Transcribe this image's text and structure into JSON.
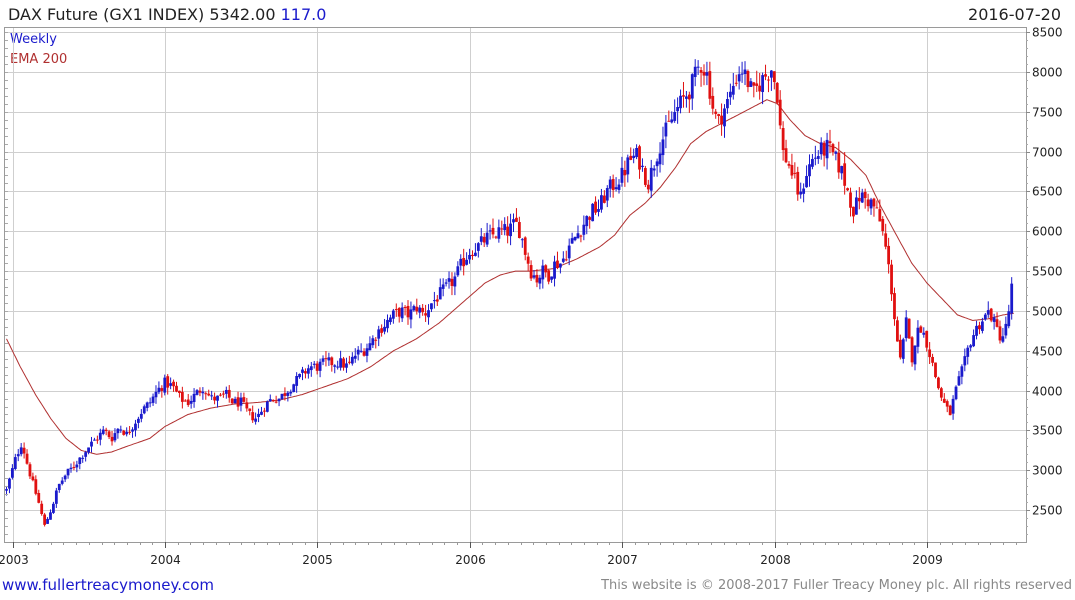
{
  "header": {
    "title_prefix": "DAX Future  (GX1 INDEX) 5342.00",
    "title_change": "117.0",
    "date": "2016-07-20"
  },
  "legend": {
    "weekly": "Weekly",
    "ema": "EMA 200"
  },
  "footer": {
    "url": "www.fullertreacymoney.com",
    "copyright": "This website is © 2008-2017 Fuller Treacy Money plc. All rights reserved"
  },
  "chart_data": {
    "type": "candlestick",
    "interval": "weekly",
    "title": "DAX Future  (GX1 INDEX)",
    "last": 5342.0,
    "change": 117.0,
    "ylim": [
      2100,
      8550
    ],
    "y_ticks": [
      2500,
      3000,
      3500,
      4000,
      4500,
      5000,
      5500,
      6000,
      6500,
      7000,
      7500,
      8000,
      8500
    ],
    "y_tick_labels": [
      "2500",
      "3000",
      "3500",
      "4000",
      "4500",
      "5000",
      "5500",
      "6000",
      "6500",
      "7000",
      "7500",
      "8000",
      "8500"
    ],
    "x_range": [
      2002.95,
      2009.65
    ],
    "x_ticks": [
      2003,
      2004,
      2005,
      2006,
      2007,
      2008,
      2009
    ],
    "x_tick_labels": [
      "2003",
      "2004",
      "2005",
      "2006",
      "2007",
      "2008",
      "2009"
    ],
    "up_color": "#1a1acc",
    "down_color": "#e01010",
    "ema_color": "#b03030",
    "grid": true,
    "price_path": [
      [
        2002.96,
        2750
      ],
      [
        2003.02,
        3150
      ],
      [
        2003.06,
        3350
      ],
      [
        2003.1,
        3050
      ],
      [
        2003.13,
        2850
      ],
      [
        2003.17,
        2600
      ],
      [
        2003.21,
        2300
      ],
      [
        2003.26,
        2550
      ],
      [
        2003.3,
        2800
      ],
      [
        2003.35,
        2950
      ],
      [
        2003.4,
        3050
      ],
      [
        2003.46,
        3200
      ],
      [
        2003.5,
        3300
      ],
      [
        2003.55,
        3400
      ],
      [
        2003.6,
        3500
      ],
      [
        2003.65,
        3400
      ],
      [
        2003.7,
        3550
      ],
      [
        2003.75,
        3450
      ],
      [
        2003.8,
        3600
      ],
      [
        2003.85,
        3750
      ],
      [
        2003.9,
        3850
      ],
      [
        2003.95,
        4000
      ],
      [
        2004.0,
        4100
      ],
      [
        2004.05,
        4050
      ],
      [
        2004.1,
        3900
      ],
      [
        2004.15,
        3850
      ],
      [
        2004.2,
        3950
      ],
      [
        2004.25,
        4050
      ],
      [
        2004.3,
        3900
      ],
      [
        2004.36,
        3900
      ],
      [
        2004.4,
        3950
      ],
      [
        2004.45,
        3850
      ],
      [
        2004.5,
        3850
      ],
      [
        2004.55,
        3700
      ],
      [
        2004.6,
        3650
      ],
      [
        2004.65,
        3800
      ],
      [
        2004.7,
        3900
      ],
      [
        2004.75,
        3900
      ],
      [
        2004.8,
        4000
      ],
      [
        2004.85,
        4100
      ],
      [
        2004.9,
        4200
      ],
      [
        2004.95,
        4300
      ],
      [
        2005.0,
        4300
      ],
      [
        2005.05,
        4350
      ],
      [
        2005.1,
        4350
      ],
      [
        2005.15,
        4350
      ],
      [
        2005.2,
        4300
      ],
      [
        2005.25,
        4450
      ],
      [
        2005.3,
        4500
      ],
      [
        2005.35,
        4600
      ],
      [
        2005.4,
        4750
      ],
      [
        2005.45,
        4850
      ],
      [
        2005.5,
        4950
      ],
      [
        2005.55,
        5000
      ],
      [
        2005.6,
        4950
      ],
      [
        2005.65,
        5050
      ],
      [
        2005.7,
        4950
      ],
      [
        2005.75,
        5100
      ],
      [
        2005.8,
        5200
      ],
      [
        2005.85,
        5300
      ],
      [
        2005.9,
        5400
      ],
      [
        2005.95,
        5600
      ],
      [
        2006.0,
        5750
      ],
      [
        2006.05,
        5800
      ],
      [
        2006.1,
        5900
      ],
      [
        2006.15,
        5950
      ],
      [
        2006.2,
        6000
      ],
      [
        2006.25,
        6000
      ],
      [
        2006.3,
        6100
      ],
      [
        2006.33,
        6000
      ],
      [
        2006.37,
        5700
      ],
      [
        2006.4,
        5500
      ],
      [
        2006.44,
        5400
      ],
      [
        2006.48,
        5500
      ],
      [
        2006.52,
        5450
      ],
      [
        2006.56,
        5600
      ],
      [
        2006.6,
        5600
      ],
      [
        2006.65,
        5800
      ],
      [
        2006.7,
        5950
      ],
      [
        2006.75,
        6100
      ],
      [
        2006.8,
        6250
      ],
      [
        2006.85,
        6300
      ],
      [
        2006.9,
        6500
      ],
      [
        2006.95,
        6600
      ],
      [
        2007.0,
        6700
      ],
      [
        2007.05,
        6900
      ],
      [
        2007.1,
        6950
      ],
      [
        2007.14,
        6750
      ],
      [
        2007.17,
        6600
      ],
      [
        2007.2,
        6800
      ],
      [
        2007.25,
        7100
      ],
      [
        2007.3,
        7300
      ],
      [
        2007.35,
        7500
      ],
      [
        2007.4,
        7650
      ],
      [
        2007.45,
        7800
      ],
      [
        2007.5,
        8050
      ],
      [
        2007.52,
        8100
      ],
      [
        2007.56,
        7950
      ],
      [
        2007.6,
        7500
      ],
      [
        2007.63,
        7350
      ],
      [
        2007.66,
        7500
      ],
      [
        2007.7,
        7650
      ],
      [
        2007.74,
        7900
      ],
      [
        2007.78,
        8050
      ],
      [
        2007.82,
        7900
      ],
      [
        2007.86,
        7700
      ],
      [
        2007.9,
        7850
      ],
      [
        2007.94,
        7950
      ],
      [
        2007.98,
        8050
      ],
      [
        2008.02,
        7700
      ],
      [
        2008.05,
        7000
      ],
      [
        2008.08,
        6900
      ],
      [
        2008.12,
        6700
      ],
      [
        2008.17,
        6400
      ],
      [
        2008.2,
        6700
      ],
      [
        2008.25,
        6900
      ],
      [
        2008.3,
        7000
      ],
      [
        2008.35,
        7050
      ],
      [
        2008.4,
        6900
      ],
      [
        2008.44,
        6750
      ],
      [
        2008.48,
        6500
      ],
      [
        2008.52,
        6250
      ],
      [
        2008.56,
        6450
      ],
      [
        2008.6,
        6400
      ],
      [
        2008.64,
        6350
      ],
      [
        2008.68,
        6200
      ],
      [
        2008.72,
        5900
      ],
      [
        2008.76,
        5400
      ],
      [
        2008.8,
        4700
      ],
      [
        2008.83,
        4300
      ],
      [
        2008.86,
        4900
      ],
      [
        2008.9,
        4400
      ],
      [
        2008.93,
        4700
      ],
      [
        2008.96,
        4800
      ],
      [
        2009.0,
        4600
      ],
      [
        2009.04,
        4300
      ],
      [
        2009.08,
        4000
      ],
      [
        2009.12,
        3800
      ],
      [
        2009.15,
        3700
      ],
      [
        2009.19,
        4000
      ],
      [
        2009.24,
        4300
      ],
      [
        2009.28,
        4600
      ],
      [
        2009.33,
        4800
      ],
      [
        2009.37,
        4900
      ],
      [
        2009.41,
        5000
      ],
      [
        2009.45,
        4800
      ],
      [
        2009.49,
        4650
      ],
      [
        2009.52,
        4800
      ],
      [
        2009.55,
        5150
      ],
      [
        2009.57,
        5342
      ]
    ],
    "ema200_path": [
      [
        2002.96,
        4650
      ],
      [
        2003.05,
        4300
      ],
      [
        2003.15,
        3950
      ],
      [
        2003.25,
        3650
      ],
      [
        2003.35,
        3400
      ],
      [
        2003.45,
        3250
      ],
      [
        2003.55,
        3200
      ],
      [
        2003.65,
        3230
      ],
      [
        2003.75,
        3300
      ],
      [
        2003.9,
        3400
      ],
      [
        2004.0,
        3550
      ],
      [
        2004.15,
        3700
      ],
      [
        2004.3,
        3780
      ],
      [
        2004.45,
        3830
      ],
      [
        2004.6,
        3850
      ],
      [
        2004.75,
        3880
      ],
      [
        2004.9,
        3950
      ],
      [
        2005.05,
        4050
      ],
      [
        2005.2,
        4150
      ],
      [
        2005.35,
        4300
      ],
      [
        2005.5,
        4500
      ],
      [
        2005.65,
        4650
      ],
      [
        2005.8,
        4850
      ],
      [
        2005.95,
        5100
      ],
      [
        2006.1,
        5350
      ],
      [
        2006.2,
        5450
      ],
      [
        2006.3,
        5500
      ],
      [
        2006.4,
        5500
      ],
      [
        2006.55,
        5530
      ],
      [
        2006.7,
        5650
      ],
      [
        2006.85,
        5800
      ],
      [
        2006.95,
        5950
      ],
      [
        2007.05,
        6200
      ],
      [
        2007.15,
        6350
      ],
      [
        2007.25,
        6550
      ],
      [
        2007.35,
        6800
      ],
      [
        2007.45,
        7100
      ],
      [
        2007.55,
        7250
      ],
      [
        2007.7,
        7400
      ],
      [
        2007.85,
        7550
      ],
      [
        2007.95,
        7650
      ],
      [
        2008.02,
        7600
      ],
      [
        2008.1,
        7400
      ],
      [
        2008.2,
        7200
      ],
      [
        2008.3,
        7100
      ],
      [
        2008.4,
        7050
      ],
      [
        2008.5,
        6900
      ],
      [
        2008.6,
        6700
      ],
      [
        2008.7,
        6300
      ],
      [
        2008.8,
        5950
      ],
      [
        2008.9,
        5600
      ],
      [
        2009.0,
        5350
      ],
      [
        2009.1,
        5150
      ],
      [
        2009.2,
        4950
      ],
      [
        2009.3,
        4880
      ],
      [
        2009.4,
        4900
      ],
      [
        2009.5,
        4950
      ],
      [
        2009.57,
        4970
      ]
    ]
  }
}
